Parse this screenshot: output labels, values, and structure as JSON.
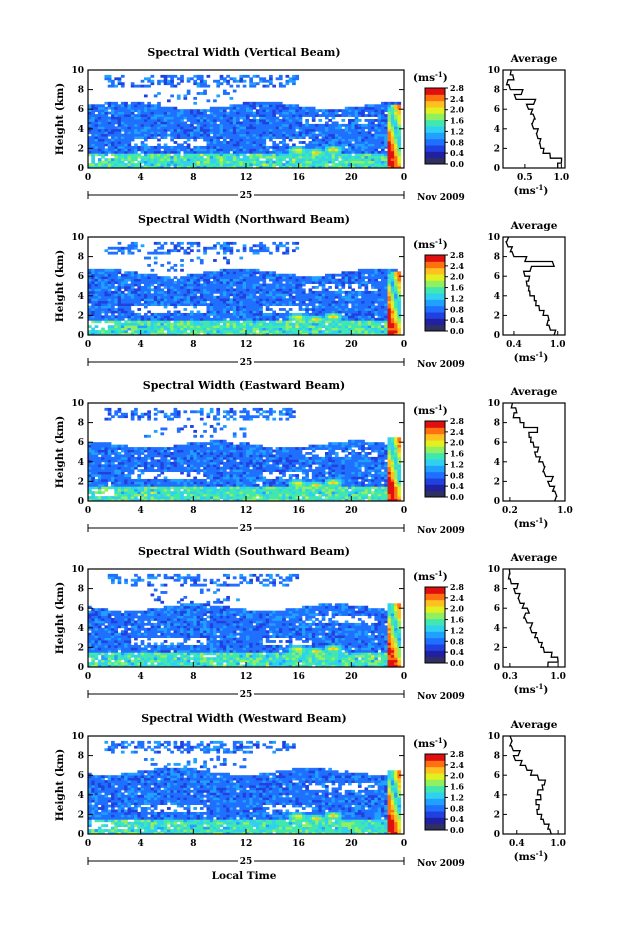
{
  "figure": {
    "xlabel": "Local Time",
    "date_day": "25",
    "date_month": "Nov 2009",
    "ylabel": "Height (km)",
    "colorbar_unit": "(ms",
    "colorbar_unit_exp": "-1",
    "colorbar_unit_close": ")",
    "avg_title": "Average",
    "avg_xlabel": "(ms",
    "avg_xlabel_exp": "-1",
    "avg_xlabel_close": ")"
  },
  "panels": [
    {
      "title": "Spectral Width (Vertical Beam)",
      "avg_ticks": [
        "0.5",
        "1.0"
      ]
    },
    {
      "title": "Spectral Width (Northward Beam)",
      "avg_ticks": [
        "0.4",
        "1.0"
      ]
    },
    {
      "title": "Spectral Width (Eastward Beam)",
      "avg_ticks": [
        "0.2",
        "1.0"
      ]
    },
    {
      "title": "Spectral Width (Southward Beam)",
      "avg_ticks": [
        "0.3",
        "1.0"
      ]
    },
    {
      "title": "Spectral Width (Westward Beam)",
      "avg_ticks": [
        "0.4",
        "1.0"
      ]
    }
  ],
  "colors": {
    "scale": [
      "#ffffff",
      "#303060",
      "#2020a0",
      "#2040e0",
      "#2070ff",
      "#20a0ff",
      "#30d0f0",
      "#40e8b0",
      "#90f060",
      "#e0f020",
      "#ffc020",
      "#ff7010",
      "#e01010"
    ]
  },
  "chart_data": [
    {
      "type": "heatmap",
      "title": "Spectral Width (Vertical Beam)",
      "xlabel": "Local Time",
      "ylabel": "Height (km)",
      "x_ticks": [
        "0",
        "4",
        "8",
        "12",
        "16",
        "20",
        "0"
      ],
      "y_ticks": [
        "0",
        "2",
        "4",
        "6",
        "8",
        "10"
      ],
      "xlim": [
        0,
        24
      ],
      "ylim": [
        0,
        10
      ],
      "colorbar": {
        "unit": "ms-1",
        "ticks": [
          "0.0",
          "0.4",
          "0.8",
          "1.2",
          "1.6",
          "2.0",
          "2.4",
          "2.8"
        ],
        "range": [
          0,
          2.8
        ]
      },
      "average_profile": {
        "title": "Average",
        "xlabel": "(ms-1)",
        "x_ticks": [
          "0.5",
          "1.0"
        ],
        "xlim": [
          0.2,
          1.05
        ],
        "height": [
          0,
          0.5,
          1.0,
          1.5,
          2.0,
          2.5,
          3.0,
          3.5,
          4.0,
          4.5,
          5.0,
          5.5,
          6.0,
          6.5,
          7.0,
          7.5,
          8.0,
          8.5,
          9.0,
          9.5
        ],
        "width": [
          0.95,
          1.0,
          0.85,
          0.75,
          0.72,
          0.7,
          0.68,
          0.66,
          0.62,
          0.6,
          0.64,
          0.58,
          0.55,
          0.62,
          0.38,
          0.45,
          0.3,
          0.25,
          0.35,
          0.3
        ]
      }
    },
    {
      "type": "heatmap",
      "title": "Spectral Width (Northward Beam)",
      "xlabel": "Local Time",
      "ylabel": "Height (km)",
      "x_ticks": [
        "0",
        "4",
        "8",
        "12",
        "16",
        "20",
        "0"
      ],
      "y_ticks": [
        "0",
        "2",
        "4",
        "6",
        "8",
        "10"
      ],
      "xlim": [
        0,
        24
      ],
      "ylim": [
        0,
        10
      ],
      "colorbar": {
        "unit": "ms-1",
        "ticks": [
          "0.0",
          "0.4",
          "0.8",
          "1.2",
          "1.6",
          "2.0",
          "2.4",
          "2.8"
        ],
        "range": [
          0,
          2.8
        ]
      },
      "average_profile": {
        "title": "Average",
        "xlabel": "(ms-1)",
        "x_ticks": [
          "0.4",
          "1.0"
        ],
        "xlim": [
          0.25,
          1.1
        ],
        "height": [
          0,
          0.5,
          1.0,
          1.5,
          2.0,
          2.5,
          3.0,
          3.5,
          4.0,
          4.5,
          5.0,
          5.5,
          6.0,
          6.5,
          7.0,
          7.5,
          8.0,
          8.5,
          9.0,
          9.5
        ],
        "width": [
          0.95,
          0.9,
          0.85,
          0.88,
          0.8,
          0.75,
          0.7,
          0.68,
          0.62,
          0.6,
          0.58,
          0.6,
          0.55,
          0.62,
          0.95,
          0.55,
          0.4,
          0.35,
          0.32,
          0.3
        ]
      }
    },
    {
      "type": "heatmap",
      "title": "Spectral Width (Eastward Beam)",
      "xlabel": "Local Time",
      "ylabel": "Height (km)",
      "x_ticks": [
        "0",
        "4",
        "8",
        "12",
        "16",
        "20",
        "0"
      ],
      "y_ticks": [
        "0",
        "2",
        "4",
        "6",
        "8",
        "10"
      ],
      "xlim": [
        0,
        24
      ],
      "ylim": [
        0,
        10
      ],
      "colorbar": {
        "unit": "ms-1",
        "ticks": [
          "0.0",
          "0.4",
          "0.8",
          "1.2",
          "1.6",
          "2.0",
          "2.4",
          "2.8"
        ],
        "range": [
          0,
          2.8
        ]
      },
      "average_profile": {
        "title": "Average",
        "xlabel": "(ms-1)",
        "x_ticks": [
          "0.2",
          "1.0"
        ],
        "xlim": [
          0.1,
          1.0
        ],
        "height": [
          0,
          0.5,
          1.0,
          1.5,
          2.0,
          2.5,
          3.0,
          3.5,
          4.0,
          4.5,
          5.0,
          5.5,
          6.0,
          6.5,
          7.0,
          7.5,
          8.0,
          8.5,
          9.0,
          9.5
        ],
        "width": [
          0.85,
          0.88,
          0.82,
          0.78,
          0.8,
          0.72,
          0.68,
          0.7,
          0.62,
          0.58,
          0.6,
          0.55,
          0.5,
          0.48,
          0.6,
          0.4,
          0.35,
          0.25,
          0.3,
          0.22
        ]
      }
    },
    {
      "type": "heatmap",
      "title": "Spectral Width (Southward Beam)",
      "xlabel": "Local Time",
      "ylabel": "Height (km)",
      "x_ticks": [
        "0",
        "4",
        "8",
        "12",
        "16",
        "20",
        "0"
      ],
      "y_ticks": [
        "0",
        "2",
        "4",
        "6",
        "8",
        "10"
      ],
      "xlim": [
        0,
        24
      ],
      "ylim": [
        0,
        10
      ],
      "colorbar": {
        "unit": "ms-1",
        "ticks": [
          "0.0",
          "0.4",
          "0.8",
          "1.2",
          "1.6",
          "2.0",
          "2.4",
          "2.8"
        ],
        "range": [
          0,
          2.8
        ]
      },
      "average_profile": {
        "title": "Average",
        "xlabel": "(ms-1)",
        "x_ticks": [
          "0.3",
          "1.0"
        ],
        "xlim": [
          0.2,
          1.1
        ],
        "height": [
          0,
          0.5,
          1.0,
          1.5,
          2.0,
          2.5,
          3.0,
          3.5,
          4.0,
          4.5,
          5.0,
          5.5,
          6.0,
          6.5,
          7.0,
          7.5,
          8.0,
          8.5,
          9.0,
          9.5
        ],
        "width": [
          0.85,
          1.0,
          0.9,
          0.8,
          0.75,
          0.72,
          0.66,
          0.62,
          0.6,
          0.55,
          0.5,
          0.58,
          0.48,
          0.45,
          0.42,
          0.38,
          0.4,
          0.32,
          0.28,
          0.3
        ]
      }
    },
    {
      "type": "heatmap",
      "title": "Spectral Width (Westward Beam)",
      "xlabel": "Local Time",
      "ylabel": "Height (km)",
      "x_ticks": [
        "0",
        "4",
        "8",
        "12",
        "16",
        "20",
        "0"
      ],
      "y_ticks": [
        "0",
        "2",
        "4",
        "6",
        "8",
        "10"
      ],
      "xlim": [
        0,
        24
      ],
      "ylim": [
        0,
        10
      ],
      "colorbar": {
        "unit": "ms-1",
        "ticks": [
          "0.0",
          "0.4",
          "0.8",
          "1.2",
          "1.6",
          "2.0",
          "2.4",
          "2.8"
        ],
        "range": [
          0,
          2.8
        ]
      },
      "average_profile": {
        "title": "Average",
        "xlabel": "(ms-1)",
        "x_ticks": [
          "0.4",
          "1.0"
        ],
        "xlim": [
          0.2,
          1.1
        ],
        "height": [
          0,
          0.5,
          1.0,
          1.5,
          2.0,
          2.5,
          3.0,
          3.5,
          4.0,
          4.5,
          5.0,
          5.5,
          6.0,
          6.5,
          7.0,
          7.5,
          8.0,
          8.5,
          9.0,
          9.5
        ],
        "width": [
          0.9,
          0.85,
          0.8,
          0.75,
          0.7,
          0.72,
          0.68,
          0.75,
          0.7,
          0.78,
          0.8,
          0.72,
          0.6,
          0.55,
          0.45,
          0.38,
          0.42,
          0.35,
          0.3,
          0.33
        ]
      }
    }
  ]
}
